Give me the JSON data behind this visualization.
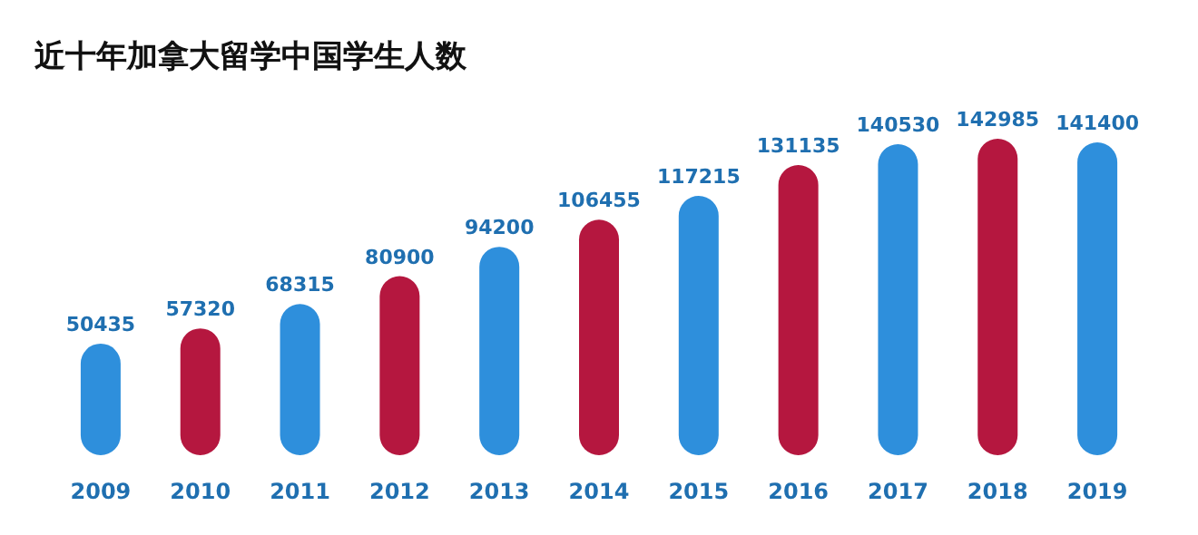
{
  "chart_data": {
    "type": "bar",
    "title": "近十年加拿大留学中国学生人数",
    "categories": [
      "2009",
      "2010",
      "2011",
      "2012",
      "2013",
      "2014",
      "2015",
      "2016",
      "2017",
      "2018",
      "2019"
    ],
    "values": [
      50435,
      57320,
      68315,
      80900,
      94200,
      106455,
      117215,
      131135,
      140530,
      142985,
      141400
    ],
    "colors": [
      "#2e8fdc",
      "#b5173f",
      "#2e8fdc",
      "#b5173f",
      "#2e8fdc",
      "#b5173f",
      "#2e8fdc",
      "#b5173f",
      "#2e8fdc",
      "#b5173f",
      "#2e8fdc"
    ],
    "data_labels": true
  }
}
